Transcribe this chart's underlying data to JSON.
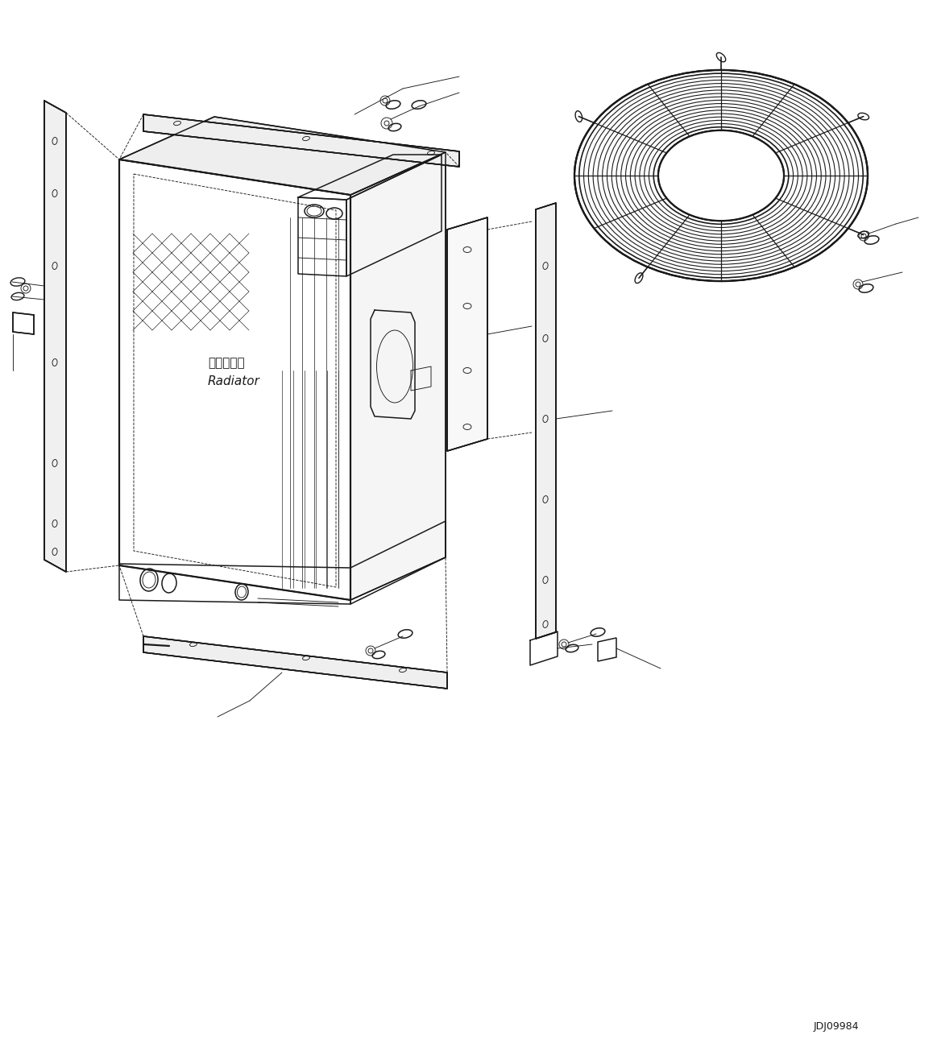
{
  "bg_color": "#ffffff",
  "lc": "#1a1a1a",
  "lw": 1.1,
  "tlw": 0.65,
  "thk": 1.6,
  "fig_w": 11.63,
  "fig_h": 12.95,
  "dpi": 100,
  "label_jp": "ラジエータ",
  "label_en": "Radiator",
  "code": "JDJ09984"
}
